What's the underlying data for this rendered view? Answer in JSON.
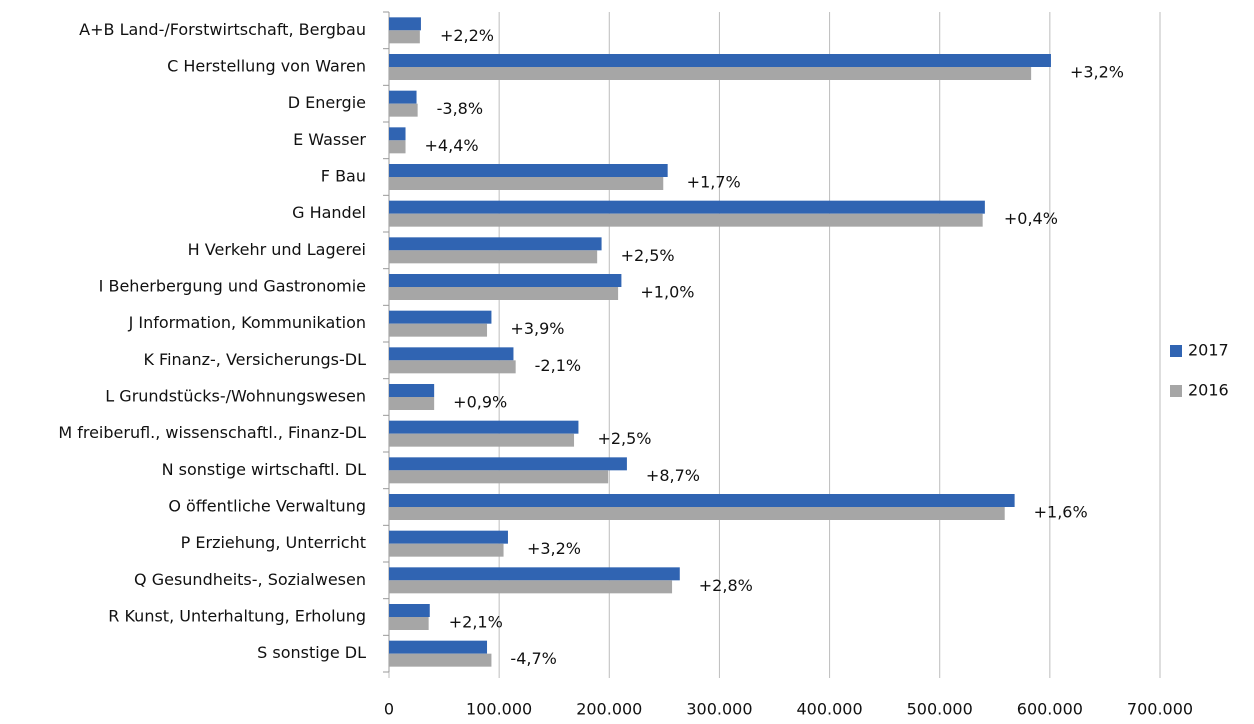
{
  "chart_data": {
    "type": "bar",
    "orientation": "horizontal",
    "categories": [
      "A+B Land-/Forstwirtschaft, Bergbau",
      "C Herstellung von Waren",
      "D Energie",
      "E Wasser",
      "F Bau",
      "G Handel",
      "H Verkehr und Lagerei",
      "I Beherbergung und Gastronomie",
      "J Information, Kommunikation",
      "K Finanz-, Versicherungs-DL",
      "L Grundstücks-/Wohnungswesen",
      "M freiberufl., wissenschaftl., Finanz-DL",
      "N sonstige wirtschaftl. DL",
      "O öffentliche Verwaltung",
      "P Erziehung, Unterricht",
      "Q Gesundheits-, Sozialwesen",
      "R Kunst, Unterhaltung, Erholung",
      "S sonstige DL"
    ],
    "series": [
      {
        "name": "2017",
        "color": "#3064b2",
        "values": [
          29000,
          601000,
          25000,
          15000,
          253000,
          541000,
          193000,
          211000,
          93000,
          113000,
          41000,
          172000,
          216000,
          568000,
          108000,
          264000,
          37000,
          89000
        ]
      },
      {
        "name": "2016",
        "color": "#a6a6a6",
        "values": [
          28000,
          583000,
          26000,
          15000,
          249000,
          539000,
          189000,
          208000,
          89000,
          115000,
          41000,
          168000,
          199000,
          559000,
          104000,
          257000,
          36000,
          93000
        ]
      }
    ],
    "annotations": [
      "+2,2%",
      "+3,2%",
      "-3,8%",
      "+4,4%",
      "+1,7%",
      "+0,4%",
      "+2,5%",
      "+1,0%",
      "+3,9%",
      "-2,1%",
      "+0,9%",
      "+2,5%",
      "+8,7%",
      "+1,6%",
      "+3,2%",
      "+2,8%",
      "+2,1%",
      "-4,7%"
    ],
    "xlim": [
      0,
      700000
    ],
    "xticks": [
      0,
      {
        "value": 100000,
        "label": "100.000"
      },
      {
        "value": 200000,
        "label": "200.000"
      },
      {
        "value": 300000,
        "label": "300.000"
      },
      {
        "value": 400000,
        "label": "400.000"
      },
      {
        "value": 500000,
        "label": "500.000"
      },
      {
        "value": 600000,
        "label": "600.000"
      },
      {
        "value": 700000,
        "label": "700.000"
      }
    ],
    "grid": true,
    "legend": "right"
  }
}
